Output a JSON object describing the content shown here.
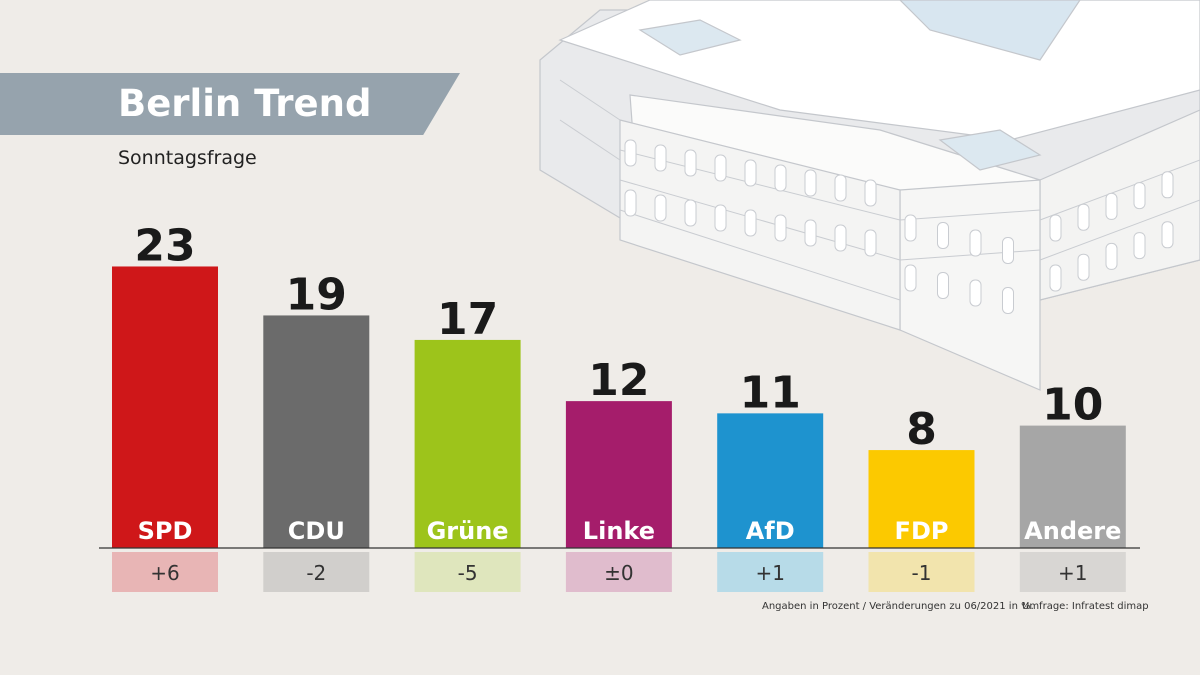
{
  "header": {
    "title": "Berlin Trend",
    "subtitle": "Sonntagsfrage"
  },
  "footer": {
    "note": "Angaben in Prozent / Veränderungen zu 06/2021 in %.",
    "source": "Umfrage: Infratest dimap"
  },
  "chart_data": {
    "type": "bar",
    "title": "Berlin Trend",
    "subtitle": "Sonntagsfrage",
    "unit": "%",
    "categories": [
      "SPD",
      "CDU",
      "Grüne",
      "Linke",
      "AfD",
      "FDP",
      "Andere"
    ],
    "values": [
      23,
      19,
      17,
      12,
      11,
      8,
      10
    ],
    "changes": [
      "+6",
      "-2",
      "-5",
      "±0",
      "+1",
      "-1",
      "+1"
    ],
    "colors": [
      "#cf1719",
      "#6b6b6b",
      "#9dc41b",
      "#a51d6b",
      "#1e93cf",
      "#fcc900",
      "#a6a6a6"
    ],
    "change_colors": [
      "#e8b5b5",
      "#d1cfcc",
      "#dfe6bd",
      "#e0bccd",
      "#b7dbe8",
      "#f2e4ad",
      "#d8d6d3"
    ],
    "ylim": [
      0,
      25
    ],
    "grid": false,
    "legend": "none"
  }
}
